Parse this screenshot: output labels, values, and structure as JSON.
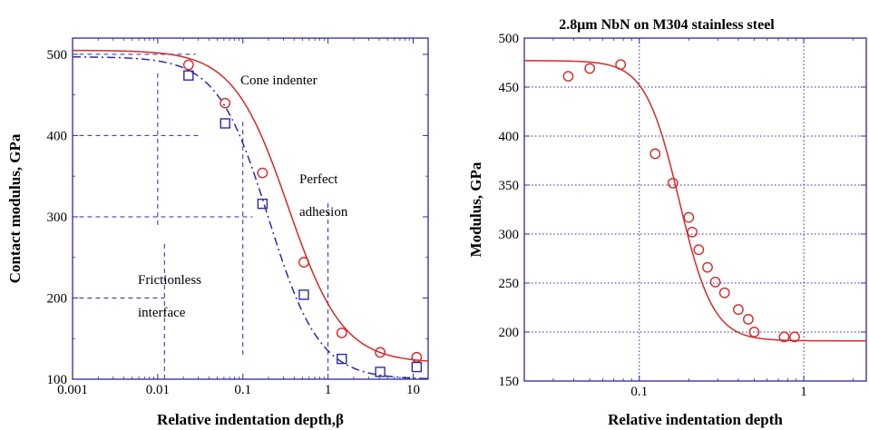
{
  "colors": {
    "frame": "#2a2aa8",
    "grid": "#2a2aa8",
    "red": "#d42a2a",
    "blue": "#2a2aa8"
  },
  "chart_data": [
    {
      "type": "scatter",
      "title": "",
      "xlabel": "Relative indentation depth,β",
      "ylabel": "Contact modulus, GPa",
      "xscale": "log",
      "xlim": [
        0.001,
        15
      ],
      "ylim": [
        100,
        520
      ],
      "xticks": [
        0.001,
        0.01,
        0.1,
        1,
        10
      ],
      "xtick_labels": [
        "0.001",
        "0.01",
        "0.1",
        "1",
        "10"
      ],
      "yticks": [
        100,
        200,
        300,
        400,
        500
      ],
      "ytick_labels": [
        "100",
        "200",
        "300",
        "400",
        "500"
      ],
      "grid": "dashed",
      "annotations": [
        "Cone indenter",
        "Perfect",
        "adhesion",
        "Frictionless",
        "interface"
      ],
      "series": [
        {
          "marker": "circle",
          "points": [
            [
              0.023,
              487
            ],
            [
              0.062,
              440
            ],
            [
              0.17,
              354
            ],
            [
              0.52,
              244
            ],
            [
              1.45,
              157
            ],
            [
              4.1,
              133
            ],
            [
              11.0,
              127
            ]
          ],
          "curve": {
            "model": "sigmoid",
            "top": 505,
            "bottom": 120,
            "x50": 0.34,
            "slope": 1.35
          }
        },
        {
          "marker": "square",
          "points": [
            [
              0.023,
              474
            ],
            [
              0.062,
              415
            ],
            [
              0.17,
              316
            ],
            [
              0.52,
              204
            ],
            [
              1.45,
              125
            ],
            [
              4.1,
              109
            ],
            [
              11.0,
              115
            ]
          ],
          "curve": {
            "model": "sigmoid",
            "top": 497,
            "bottom": 100,
            "x50": 0.2,
            "slope": 1.45
          }
        }
      ]
    },
    {
      "type": "scatter",
      "title": "2.8μm NbN on M304 stainless steel",
      "xlabel": "Relative indentation depth",
      "ylabel": "Modulus, GPa",
      "xscale": "log",
      "xlim": [
        0.02,
        2.4
      ],
      "ylim": [
        150,
        500
      ],
      "xticks": [
        0.1,
        1
      ],
      "xtick_labels": [
        "0.1",
        "1"
      ],
      "yticks": [
        150,
        200,
        250,
        300,
        350,
        400,
        450,
        500
      ],
      "ytick_labels": [
        "150",
        "200",
        "250",
        "300",
        "350",
        "400",
        "450",
        "500"
      ],
      "grid": "dotted",
      "series": [
        {
          "marker": "circle",
          "points": [
            [
              0.037,
              461
            ],
            [
              0.05,
              469
            ],
            [
              0.077,
              473
            ],
            [
              0.125,
              382
            ],
            [
              0.16,
              352
            ],
            [
              0.2,
              317
            ],
            [
              0.21,
              302
            ],
            [
              0.23,
              284
            ],
            [
              0.26,
              266
            ],
            [
              0.29,
              251
            ],
            [
              0.33,
              240
            ],
            [
              0.4,
              223
            ],
            [
              0.46,
              213
            ],
            [
              0.5,
              200
            ],
            [
              0.76,
              195
            ],
            [
              0.88,
              195
            ]
          ],
          "curve": {
            "model": "sigmoid",
            "top": 477,
            "bottom": 191,
            "x50": 0.175,
            "slope": 4.2
          }
        }
      ]
    }
  ]
}
